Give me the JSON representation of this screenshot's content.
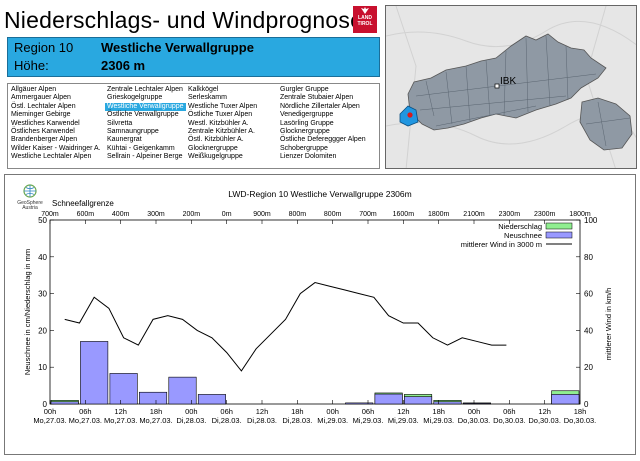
{
  "header": {
    "title": "Niederschlags- und Windprognose",
    "logo_text_1": "LAND",
    "logo_text_2": "TIROL"
  },
  "region": {
    "label": "Region 10",
    "name": "Westliche Verwallgruppe",
    "height_label": "Höhe:",
    "height_value": "2306 m"
  },
  "region_list": {
    "selected": "Westliche Verwallgruppe",
    "columns": [
      [
        "Allgäuer Alpen",
        "Ammergauer Alpen",
        "Östl. Lechtaler Alpen",
        "Mieminger Gebirge",
        "Westliches Karwendel",
        "Östliches Karwendel",
        "Brandenberger Alpen",
        "Wilder Kaiser - Waidringer A.",
        "Westliche Lechtaler Alpen"
      ],
      [
        "Zentrale Lechtaler Alpen",
        "Grieskogelgruppe",
        "Westliche Verwallgruppe",
        "Östliche Verwallgruppe",
        "Silvretta",
        "Samnaungruppe",
        "Kaunergrat",
        "Kühtai - Geigenkamm",
        "Sellrain - Alpeiner Berge"
      ],
      [
        "Kalkkögel",
        "Serleskamm",
        "Westliche Tuxer Alpen",
        "Östliche Tuxer Alpen",
        "Westl. Kitzbühler A.",
        "Zentrale Kitzbühler A.",
        "Östl. Kitzbühler A.",
        "Glocknergruppe",
        "Weißkugelgruppe"
      ],
      [
        "Gurgler Gruppe",
        "Zentrale Stubaier Alpen",
        "Nördliche Zillertaler Alpen",
        "Venedigergruppe",
        "Lasörling Gruppe",
        "Glocknergruppe",
        "Östliche Defereggger Alpen",
        "Schobergruppe",
        "Lienzer Dolomiten"
      ]
    ]
  },
  "map": {
    "city_label": "IBK",
    "land_color": "#9aa3ad",
    "region_color": "#2196e0"
  },
  "brand": {
    "name": "GeoSphere",
    "country": "Austria"
  },
  "chart_data": {
    "type": "bar",
    "title": "LWD-Region 10 Westliche Verwallgruppe 2306m",
    "ylabel": "Neuschnee in cm/Niederschlag in mm",
    "y2label": "mittlerer Wind in km/h",
    "snowline_label": "Schneefallgrenze",
    "ylim": [
      0,
      50
    ],
    "y2lim": [
      0,
      100
    ],
    "yticks": [
      "0",
      "10",
      "20",
      "30",
      "40",
      "50"
    ],
    "y2ticks": [
      "0",
      "20",
      "40",
      "60",
      "80",
      "100"
    ],
    "xticks": [
      {
        "time": "00h",
        "date": "Mo,27.03."
      },
      {
        "time": "06h",
        "date": "Mo,27.03."
      },
      {
        "time": "12h",
        "date": "Mo,27.03."
      },
      {
        "time": "18h",
        "date": "Mo,27.03."
      },
      {
        "time": "00h",
        "date": "Di,28.03."
      },
      {
        "time": "06h",
        "date": "Di,28.03."
      },
      {
        "time": "12h",
        "date": "Di,28.03."
      },
      {
        "time": "18h",
        "date": "Di,28.03."
      },
      {
        "time": "00h",
        "date": "Mi,29.03."
      },
      {
        "time": "06h",
        "date": "Mi,29.03."
      },
      {
        "time": "12h",
        "date": "Mi,29.03."
      },
      {
        "time": "18h",
        "date": "Mi,29.03."
      },
      {
        "time": "00h",
        "date": "Do,30.03."
      },
      {
        "time": "06h",
        "date": "Do,30.03."
      },
      {
        "time": "12h",
        "date": "Do,30.03."
      },
      {
        "time": "18h",
        "date": "Do,30.03."
      }
    ],
    "snowline": [
      "700m",
      "600m",
      "400m",
      "300m",
      "200m",
      "0m",
      "900m",
      "800m",
      "800m",
      "700m",
      "1600m",
      "1800m",
      "2100m",
      "2300m",
      "2300m",
      "1800m"
    ],
    "legend": [
      "Niederschlag",
      "Neuschnee",
      "mittlerer Wind in 3000 m"
    ],
    "legend_position": "top-right",
    "series": [
      {
        "name": "Niederschlag",
        "color": "#90ee90",
        "values": [
          1.0,
          0,
          0,
          0,
          0,
          0,
          0,
          0,
          0,
          0,
          0,
          3.0,
          2.6,
          1.0,
          0.3,
          0,
          0,
          3.6
        ]
      },
      {
        "name": "Neuschnee",
        "color": "#9999ff",
        "values": [
          0.6,
          17.0,
          8.3,
          3.2,
          7.3,
          2.6,
          0,
          0,
          0,
          0,
          0.3,
          2.7,
          2.0,
          0.6,
          0.2,
          0,
          0,
          2.6
        ]
      },
      {
        "name": "mittlerer Wind in 3000 m",
        "color": "#000000",
        "x_hours": [
          0,
          3,
          6,
          9,
          12,
          15,
          18,
          21,
          24,
          27,
          30,
          33,
          36,
          39,
          42,
          45,
          48,
          51,
          54,
          57,
          60,
          63,
          66,
          69,
          72,
          75,
          78,
          81,
          84,
          87,
          90
        ],
        "values": [
          46,
          44,
          58,
          52,
          36,
          32,
          46,
          48,
          46,
          40,
          36,
          28,
          18,
          30,
          38,
          46,
          60,
          66,
          64,
          62,
          60,
          58,
          48,
          44,
          44,
          36,
          32,
          36,
          34,
          32,
          32
        ]
      }
    ],
    "bar_slots": 18
  }
}
